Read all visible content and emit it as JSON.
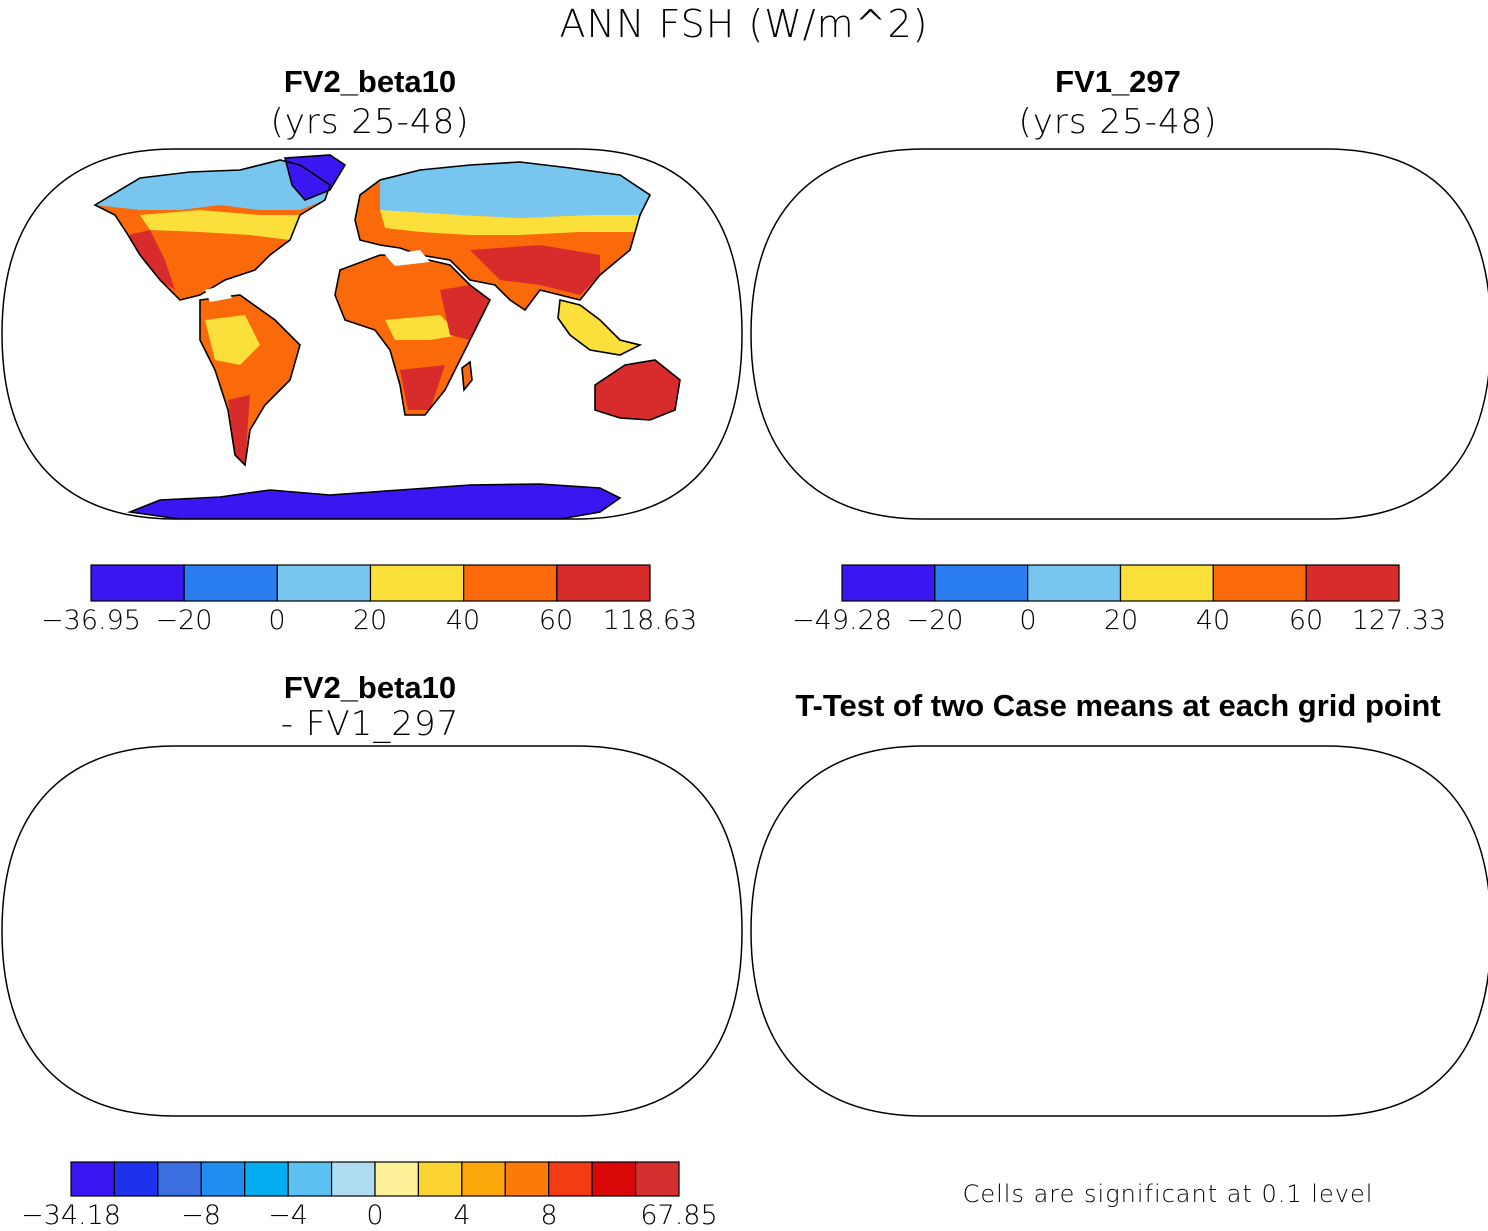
{
  "figure_title": "ANN FSH (W/m^2)",
  "panels": [
    {
      "title": "FV2_beta10",
      "subtitle": "(yrs 25-48)",
      "colorbar": {
        "colors": [
          "#3a16f0",
          "#2a7ef0",
          "#78c6f0",
          "#fbdf3a",
          "#fb6a0a",
          "#d82c2c"
        ],
        "labels": [
          "-36.95",
          "-20",
          "0",
          "20",
          "40",
          "60",
          "118.63"
        ]
      }
    },
    {
      "title": "FV1_297",
      "subtitle": "(yrs 25-48)",
      "colorbar": {
        "colors": [
          "#3a16f0",
          "#2a7ef0",
          "#78c6f0",
          "#fbdf3a",
          "#fb6a0a",
          "#d82c2c"
        ],
        "labels": [
          "-49.28",
          "-20",
          "0",
          "20",
          "40",
          "60",
          "127.33"
        ]
      }
    },
    {
      "title": "FV2_beta10",
      "subtitle": "- FV1_297",
      "colorbar": {
        "colors": [
          "#3a16f0",
          "#1e32ee",
          "#3b6fe0",
          "#1f8ef0",
          "#05aef0",
          "#5cc0f0",
          "#b0dcf0",
          "#fdf29a",
          "#fbd432",
          "#fba70a",
          "#fb7a0a",
          "#f43c14",
          "#d80808",
          "#d42e2e"
        ],
        "labels": [
          "-34.18",
          "-8",
          "-4",
          "0",
          "4",
          "8",
          "67.85"
        ]
      }
    },
    {
      "title": "T-Test of two Case means at each grid point",
      "note": "Cells are significant at 0.1 level"
    }
  ]
}
